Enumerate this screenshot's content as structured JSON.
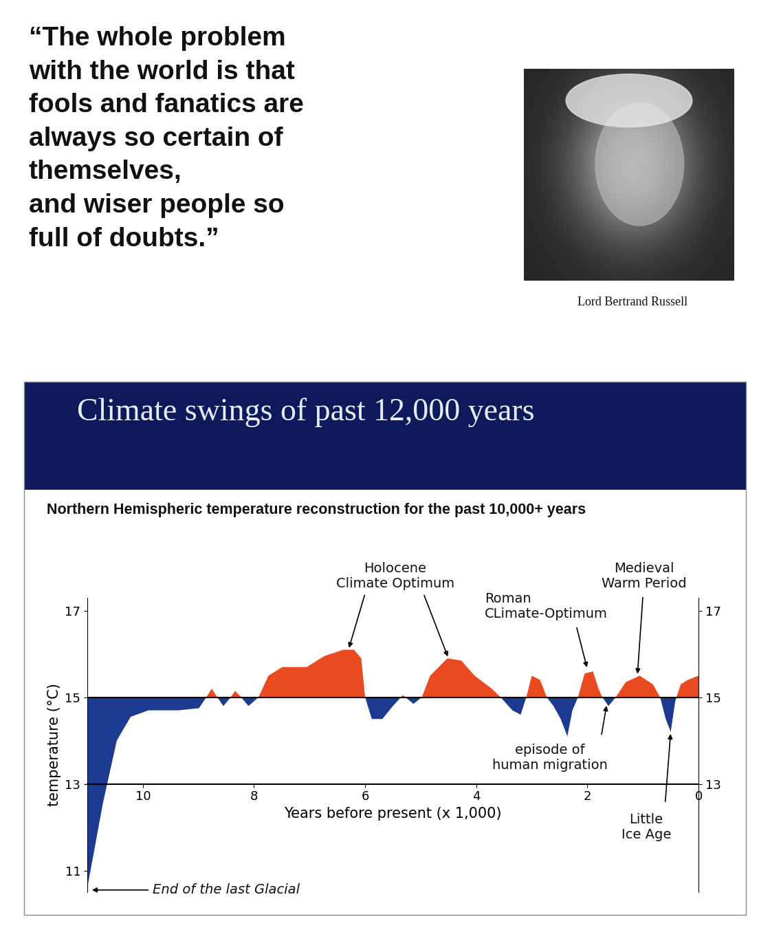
{
  "quote": "“The whole problem\nwith the world is that\nfools and fanatics are\nalways so certain of\nthemselves,\nand wiser people so\nfull of doubts.”",
  "quote_author": "Lord Bertrand Russell",
  "header": "Climate swings of past 12,000 years",
  "chart_data": {
    "type": "area",
    "title": "Northern Hemispheric temperature reconstruction for the past 10,000+ years",
    "x_label": "Years before present (x 1,000)",
    "y_label": "temperature (°C)",
    "x": [
      11.0,
      10.72,
      10.47,
      10.22,
      9.9,
      9.36,
      8.99,
      8.86,
      8.76,
      8.66,
      8.55,
      8.42,
      8.34,
      8.23,
      8.1,
      7.92,
      7.74,
      7.49,
      7.05,
      6.74,
      6.39,
      6.2,
      6.07,
      6.0,
      5.88,
      5.69,
      5.5,
      5.32,
      5.13,
      4.98,
      4.83,
      4.52,
      4.27,
      4.03,
      3.72,
      3.56,
      3.35,
      3.2,
      3.1,
      3.0,
      2.85,
      2.73,
      2.61,
      2.48,
      2.36,
      2.27,
      2.17,
      2.05,
      1.9,
      1.8,
      1.73,
      1.62,
      1.49,
      1.31,
      1.06,
      0.82,
      0.69,
      0.59,
      0.5,
      0.42,
      0.32,
      0.2,
      0.0
    ],
    "values": [
      10.6,
      12.55,
      14.0,
      14.55,
      14.7,
      14.7,
      14.75,
      15.0,
      15.2,
      15.0,
      14.8,
      15.0,
      15.15,
      15.0,
      14.8,
      15.0,
      15.5,
      15.7,
      15.7,
      15.95,
      16.1,
      16.1,
      15.9,
      15.0,
      14.5,
      14.5,
      14.8,
      15.05,
      14.85,
      15.0,
      15.5,
      15.9,
      15.85,
      15.5,
      15.2,
      15.0,
      14.7,
      14.6,
      15.0,
      15.5,
      15.4,
      15.0,
      14.8,
      14.5,
      14.1,
      14.7,
      15.0,
      15.55,
      15.6,
      15.2,
      15.0,
      14.8,
      15.0,
      15.35,
      15.5,
      15.3,
      15.0,
      14.5,
      14.2,
      14.9,
      15.3,
      15.4,
      15.5
    ],
    "baseline": 15,
    "xaxis_at": 13,
    "colors": [
      "#ea4a1f",
      "#1c3a8f"
    ],
    "xlim": [
      11,
      0
    ],
    "ylim": [
      10.5,
      17.3
    ],
    "xticks": [
      10,
      8,
      6,
      4,
      2,
      0
    ],
    "yticks": [
      11,
      13,
      15,
      17
    ],
    "y2lim": [
      10.5,
      17.3
    ],
    "y2ticks": [
      13,
      15,
      17
    ],
    "annotations": [
      {
        "text": "Holocene\nClimate Optimum",
        "points": [
          [
            6.3,
            16.1
          ],
          [
            4.5,
            15.9
          ]
        ]
      },
      {
        "text": "Roman\nCLimate-Optimum",
        "points": [
          [
            2.0,
            15.65
          ]
        ]
      },
      {
        "text": "Medieval\nWarm Period",
        "points": [
          [
            1.1,
            15.5
          ]
        ]
      },
      {
        "text": "episode of\nhuman migration",
        "points": [
          [
            1.65,
            14.85
          ]
        ]
      },
      {
        "text": "Little\nIce Age",
        "points": [
          [
            0.5,
            14.2
          ]
        ]
      },
      {
        "text": "End of the last Glacial",
        "points": [
          [
            10.95,
            10.55
          ]
        ]
      }
    ]
  }
}
